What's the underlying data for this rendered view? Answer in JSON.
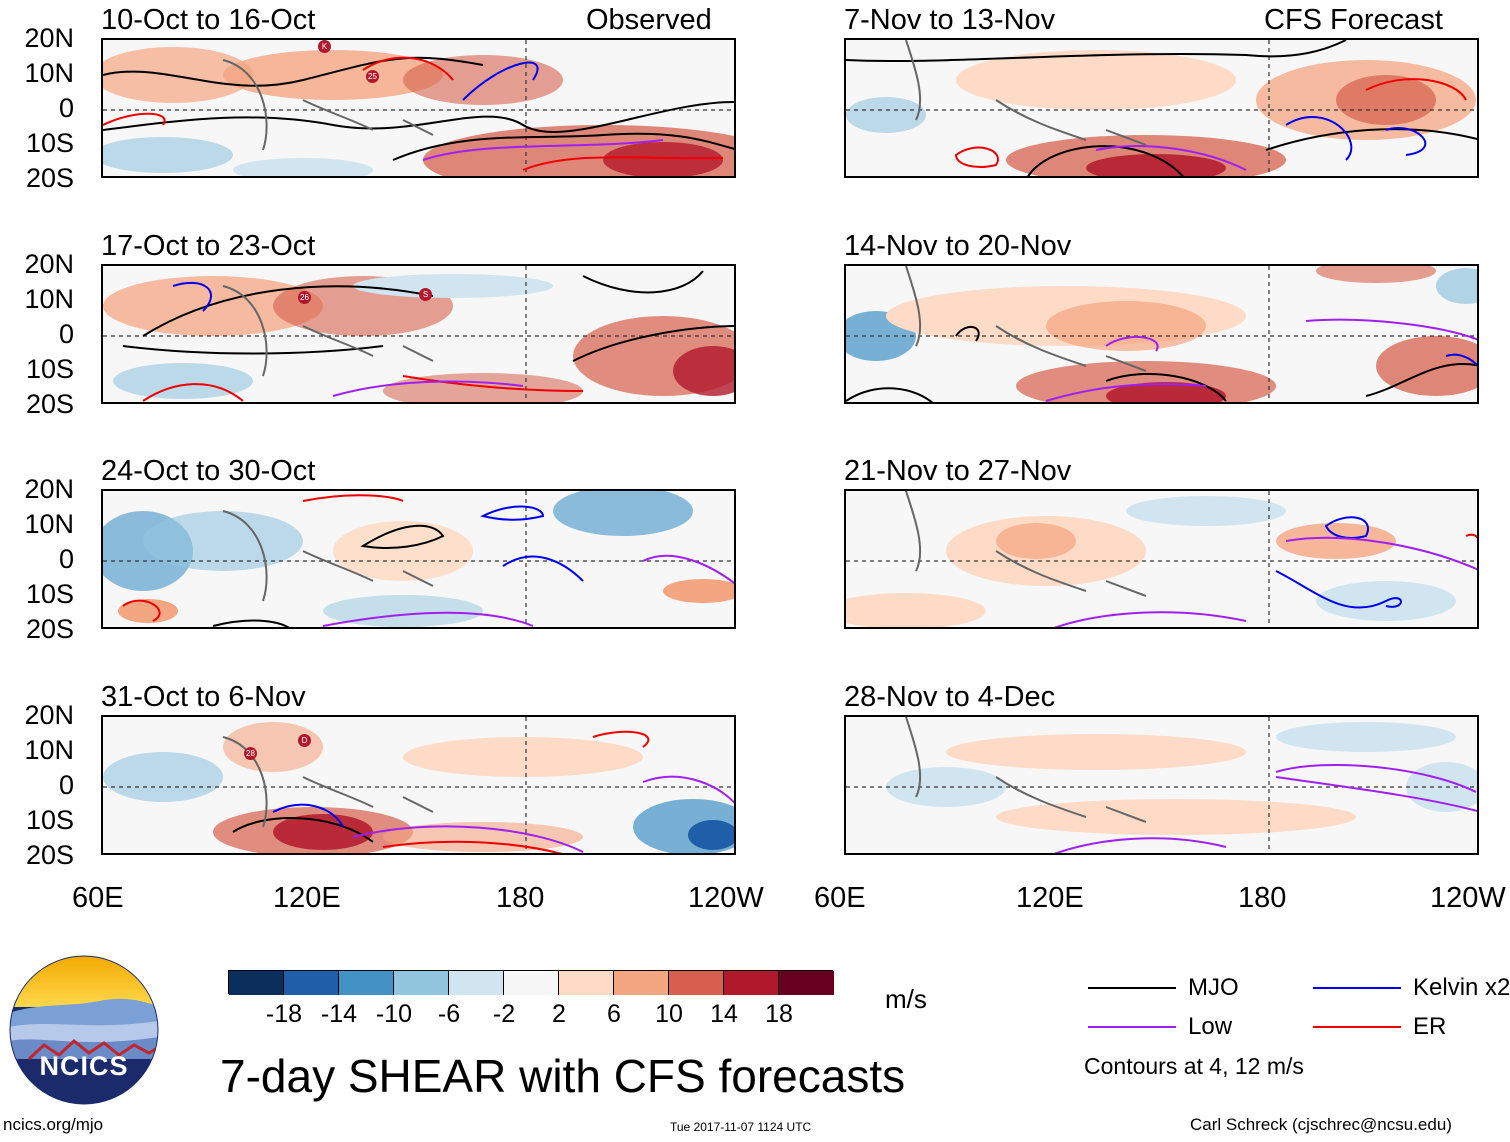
{
  "chart_data": {
    "type": "heatmap",
    "title": "7-day SHEAR with CFS forecasts",
    "units": "m/s",
    "observed_label": "Observed",
    "forecast_label": "CFS Forecast",
    "observed_periods": [
      "10-Oct to 16-Oct",
      "17-Oct to 23-Oct",
      "24-Oct to 30-Oct",
      "31-Oct to 6-Nov"
    ],
    "forecast_periods": [
      "7-Nov to 13-Nov",
      "14-Nov to 20-Nov",
      "21-Nov to 27-Nov",
      "28-Nov to 4-Dec"
    ],
    "x_ticks": [
      "60E",
      "120E",
      "180",
      "120W"
    ],
    "y_ticks": [
      "20N",
      "10N",
      "0",
      "10S",
      "20S"
    ],
    "xlim": [
      60,
      240
    ],
    "ylim": [
      -20,
      20
    ],
    "colorbar": {
      "ticks": [
        "-18",
        "-14",
        "-10",
        "-6",
        "-2",
        "2",
        "6",
        "10",
        "14",
        "18"
      ],
      "colors": [
        "#0c2e5c",
        "#1f5ea8",
        "#4292c6",
        "#92c5de",
        "#d1e5f0",
        "#f7f7f7",
        "#fddbc7",
        "#f4a582",
        "#d6604d",
        "#b2182b",
        "#67001f"
      ]
    },
    "contour_legend": [
      {
        "label": "MJO",
        "color": "#000000"
      },
      {
        "label": "Kelvin x2",
        "color": "#0000ee"
      },
      {
        "label": "Low",
        "color": "#a020f0"
      },
      {
        "label": "ER",
        "color": "#ee0000"
      }
    ],
    "contour_note": "Contours at 4, 12 m/s",
    "storm_markers": [
      {
        "panel": 0,
        "label": "K"
      },
      {
        "panel": 0,
        "label": "25"
      },
      {
        "panel": 1,
        "label": "26"
      },
      {
        "panel": 1,
        "label": "S"
      },
      {
        "panel": 3,
        "label": "28"
      },
      {
        "panel": 3,
        "label": "D"
      }
    ]
  },
  "footer": {
    "logo_text": "NCICS",
    "url": "ncics.org/mjo",
    "timestamp": "Tue 2017-11-07 1124 UTC",
    "credit": "Carl Schreck (cjschrec@ncsu.edu)"
  }
}
